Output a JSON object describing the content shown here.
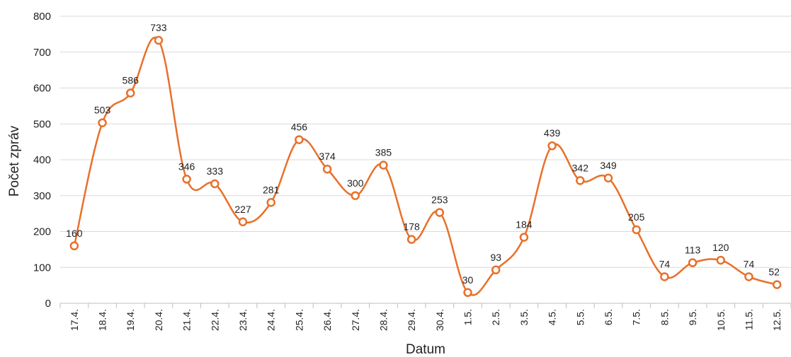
{
  "chart_data": {
    "type": "line",
    "xlabel": "Datum",
    "ylabel": "Počet zpráv",
    "ylim": [
      0,
      800
    ],
    "yticks": [
      0,
      100,
      200,
      300,
      400,
      500,
      600,
      700,
      800
    ],
    "grid": true,
    "line_color": "#E8702A",
    "marker_fill": "#ffffff",
    "categories": [
      "17.4.",
      "18.4.",
      "19.4.",
      "20.4.",
      "21.4.",
      "22.4.",
      "23.4.",
      "24.4.",
      "25.4.",
      "26.4.",
      "27.4.",
      "28.4.",
      "29.4.",
      "30.4.",
      "1.5.",
      "2.5.",
      "3.5.",
      "4.5.",
      "5.5.",
      "6.5.",
      "7.5.",
      "8.5.",
      "9.5.",
      "10.5.",
      "11.5.",
      "12.5."
    ],
    "values": [
      160,
      503,
      586,
      733,
      346,
      333,
      227,
      281,
      456,
      374,
      300,
      385,
      178,
      253,
      30,
      93,
      184,
      439,
      342,
      349,
      205,
      74,
      113,
      120,
      74,
      52
    ]
  }
}
